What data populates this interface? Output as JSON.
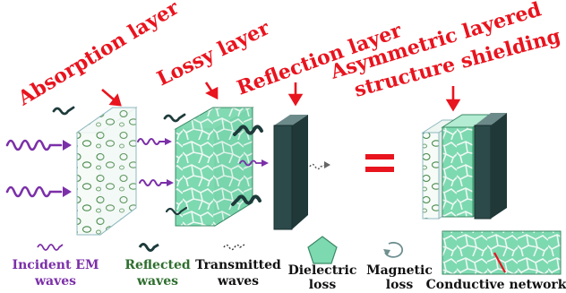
{
  "titles": {
    "absorption": "Absorption layer",
    "lossy": "Lossy layer",
    "reflection": "Reflection layer",
    "asym_line1": "Asymmetric layered",
    "asym_line2": "structure shielding"
  },
  "equals": "=",
  "legend": {
    "incident_l1": "Incident EM",
    "incident_l2": "waves",
    "reflected_l1": "Reflected",
    "reflected_l2": "waves",
    "transmitted_l1": "Transmitted",
    "transmitted_l2": "waves",
    "dielectric_l1": "Dielectric",
    "dielectric_l2": "loss",
    "magnetic_l1": "Magnetic",
    "magnetic_l2": "loss",
    "conductive": "Conductive networks"
  },
  "colors": {
    "title_red": "#e8141e",
    "incident_purple": "#7b2fa8",
    "reflected_green": "#2e6e2e",
    "dark_wave": "#1e3b3b",
    "lossy_fill": "#7dd9b0",
    "reflector_fill": "#2c4a4a",
    "equals_red": "#e8141e"
  },
  "icons": {
    "incident": "incident-wave-icon",
    "reflected": "reflected-wave-icon",
    "transmitted": "transmitted-wave-icon",
    "dielectric": "pentagon-icon",
    "magnetic": "loop-arrow-icon",
    "conductive": "conductive-network-icon"
  }
}
